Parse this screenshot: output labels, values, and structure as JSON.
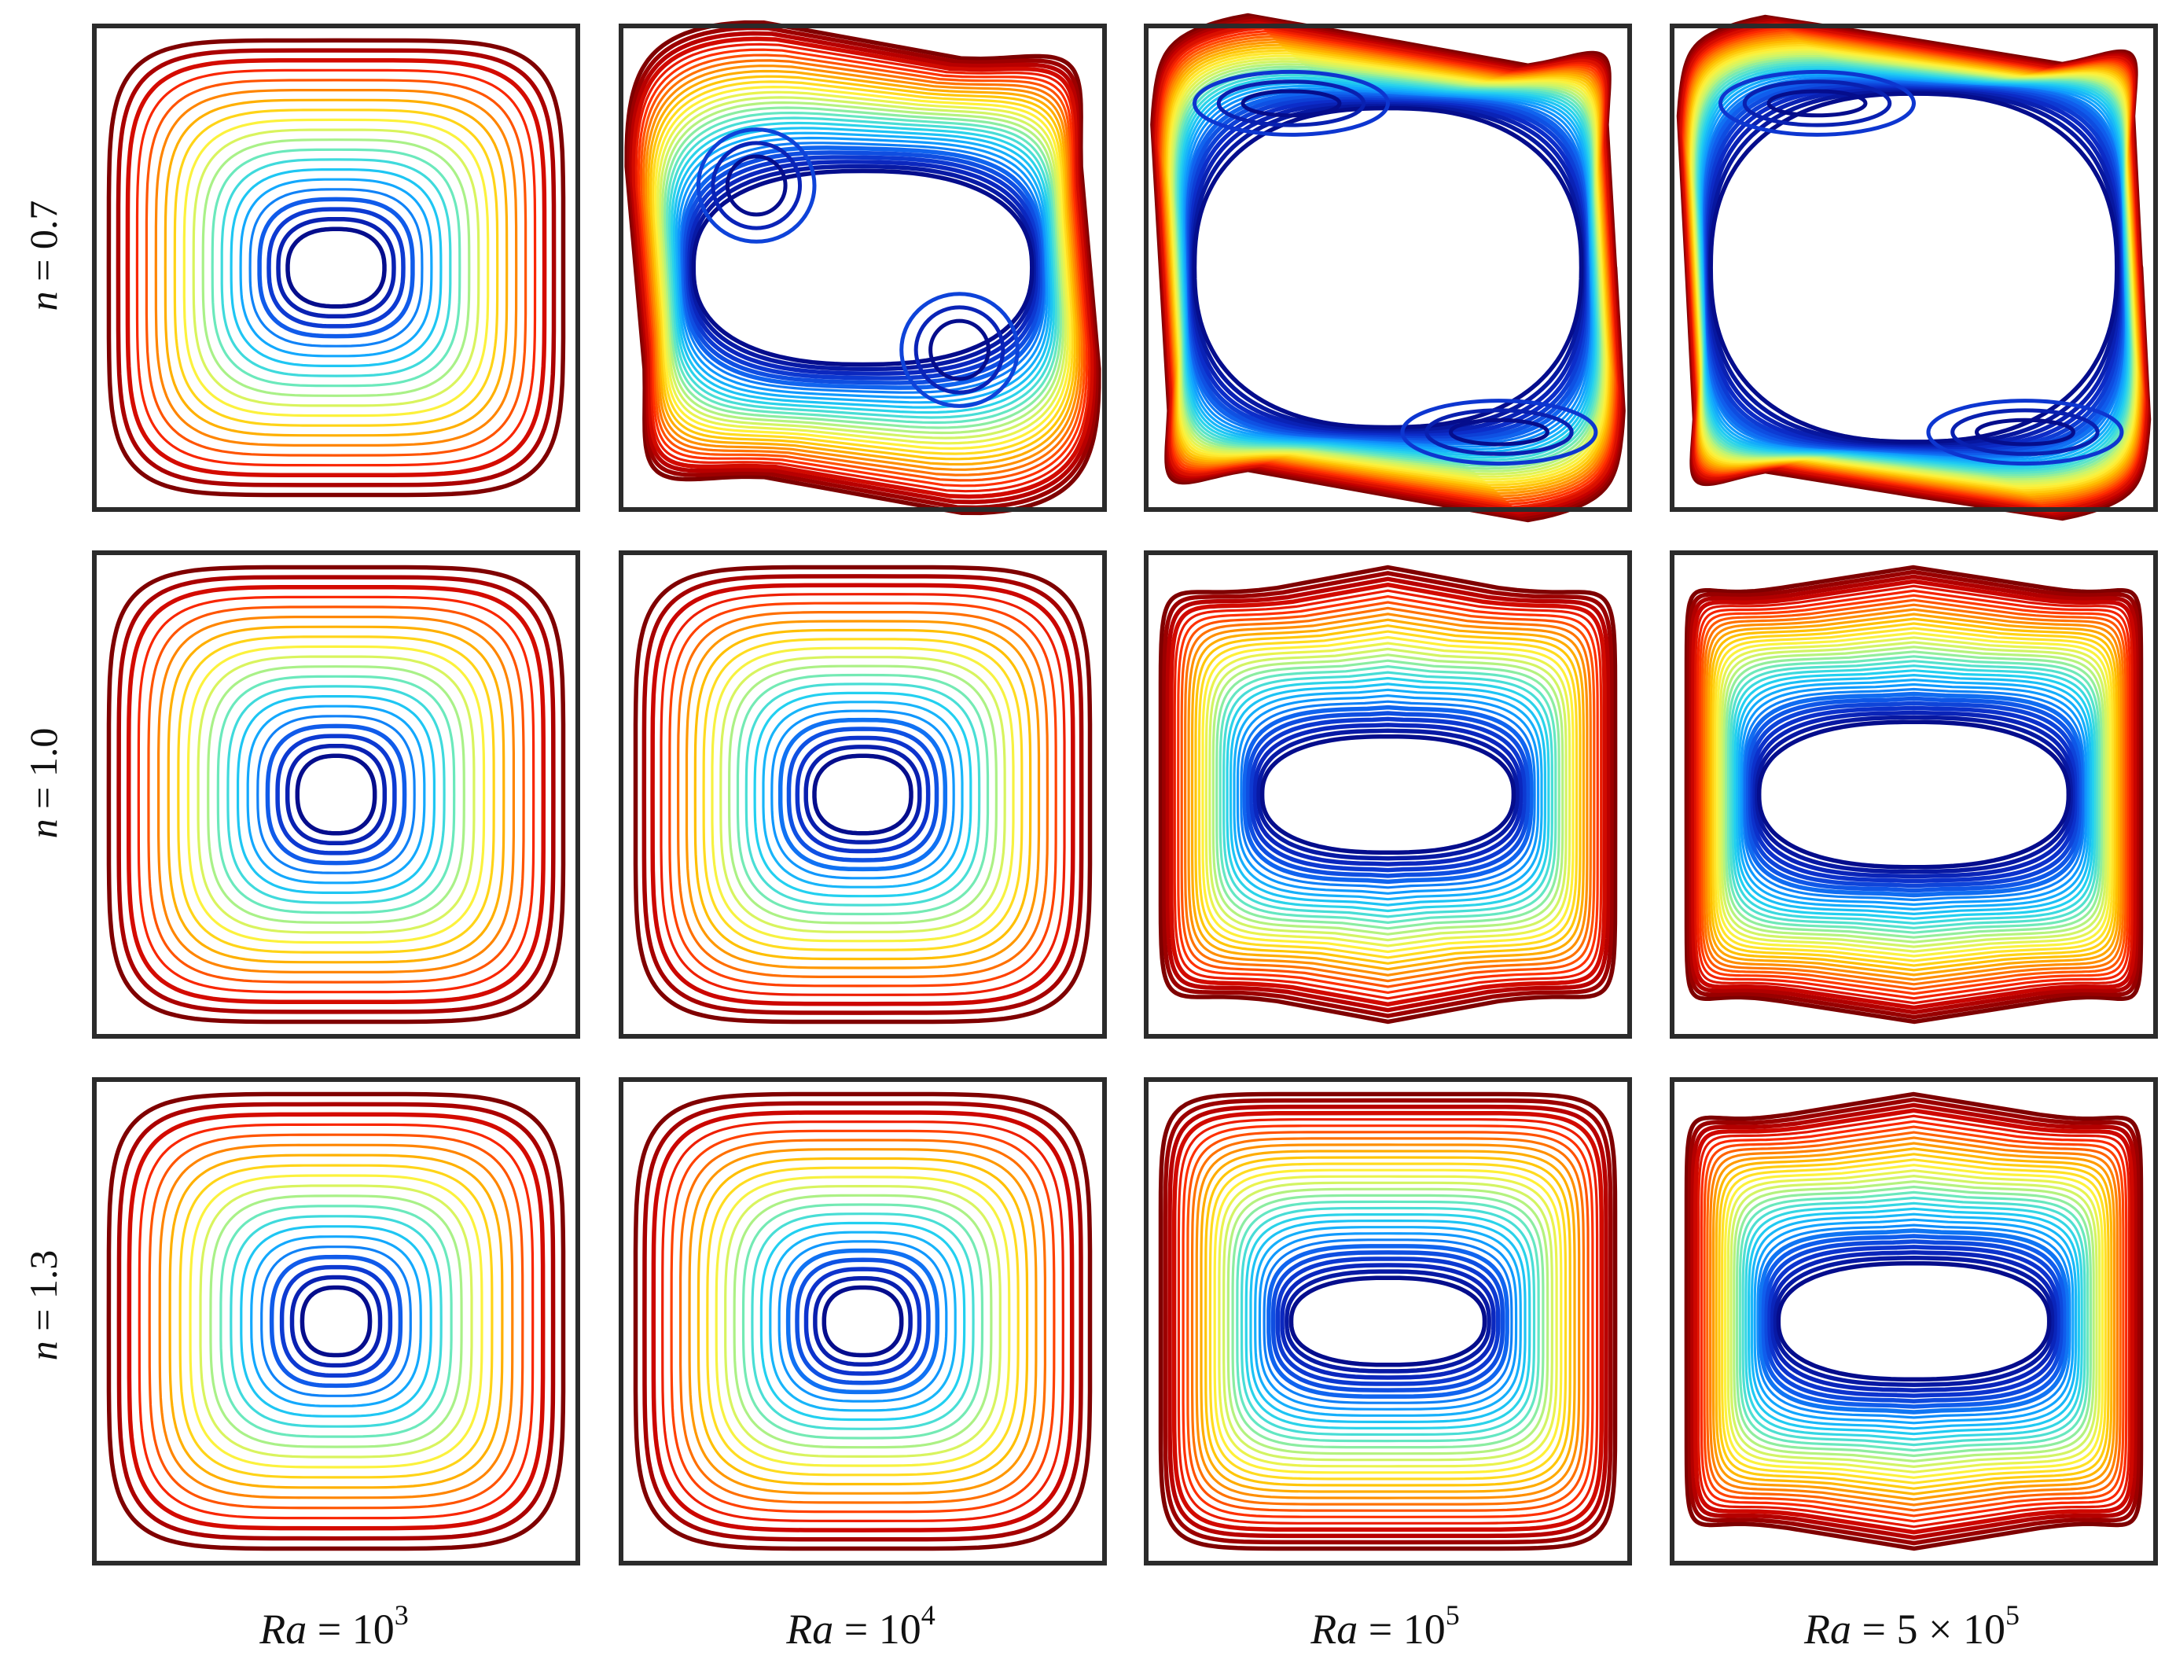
{
  "rows": [
    {
      "n_label": "n",
      "n_value": " = 0.7"
    },
    {
      "n_label": "n",
      "n_value": " = 1.0"
    },
    {
      "n_label": "n",
      "n_value": " = 1.3"
    }
  ],
  "columns": [
    {
      "ra_label": "Ra",
      "ra_eq": " = 10",
      "ra_exp": "3"
    },
    {
      "ra_label": "Ra",
      "ra_eq": " = 10",
      "ra_exp": "4"
    },
    {
      "ra_label": "Ra",
      "ra_eq": " = 10",
      "ra_exp": "5"
    },
    {
      "ra_label": "Ra",
      "ra_eq": " = 5 × 10",
      "ra_exp": "5"
    }
  ],
  "colors": {
    "frame": "#2b2b2b",
    "scale": [
      "#7f0000",
      "#c40000",
      "#ff2a00",
      "#ff7a00",
      "#ffbf00",
      "#fff23a",
      "#c8f56e",
      "#66e8c0",
      "#22d0f0",
      "#10a0ff",
      "#1060ee",
      "#0c2cc8",
      "#050d8c"
    ]
  }
}
